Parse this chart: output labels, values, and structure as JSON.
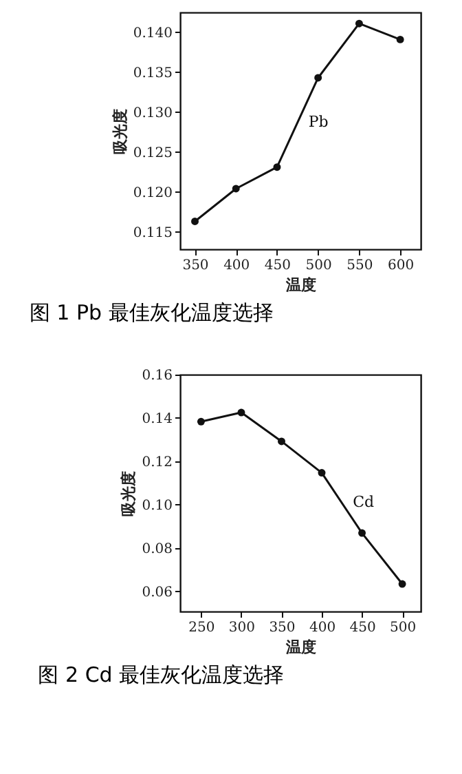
{
  "chart_data": [
    {
      "type": "line",
      "title": "图 1 Pb 最佳灰化温度选择",
      "xlabel": "温度",
      "ylabel": "吸光度",
      "x": [
        350,
        400,
        450,
        500,
        550,
        600
      ],
      "series": [
        {
          "name": "Pb",
          "color": "#111111",
          "values": [
            0.1163,
            0.1204,
            0.1231,
            0.1343,
            0.1411,
            0.1391
          ]
        }
      ],
      "xlim": [
        332,
        625
      ],
      "xticks": [
        350,
        400,
        450,
        500,
        550,
        600
      ],
      "ylim": [
        0.1128,
        0.1425
      ],
      "yticks": [
        {
          "value": 0.115,
          "label": "0.115"
        },
        {
          "value": 0.12,
          "label": "0.120"
        },
        {
          "value": 0.125,
          "label": "0.125"
        },
        {
          "value": 0.13,
          "label": "0.130"
        },
        {
          "value": 0.135,
          "label": "0.135"
        },
        {
          "value": 0.14,
          "label": "0.140"
        }
      ],
      "marker": "circle",
      "line_style": "solid",
      "grid": false
    },
    {
      "type": "line",
      "title": "图 2 Cd 最佳灰化温度选择",
      "xlabel": "温度",
      "ylabel": "吸光度",
      "x": [
        250,
        300,
        350,
        400,
        450,
        500
      ],
      "series": [
        {
          "name": "Cd",
          "color": "#111111",
          "values": [
            0.1383,
            0.1425,
            0.1292,
            0.1147,
            0.0869,
            0.0634
          ]
        }
      ],
      "xlim": [
        224,
        523
      ],
      "xticks": [
        250,
        300,
        350,
        400,
        450,
        500
      ],
      "ylim": [
        0.0507,
        0.16
      ],
      "yticks": [
        {
          "value": 0.06,
          "label": "0.06"
        },
        {
          "value": 0.08,
          "label": "0.08"
        },
        {
          "value": 0.1,
          "label": "0.10"
        },
        {
          "value": 0.12,
          "label": "0.12"
        },
        {
          "value": 0.14,
          "label": "0.14"
        },
        {
          "value": 0.16,
          "label": "0.16"
        }
      ],
      "marker": "circle",
      "line_style": "solid",
      "grid": false
    }
  ]
}
